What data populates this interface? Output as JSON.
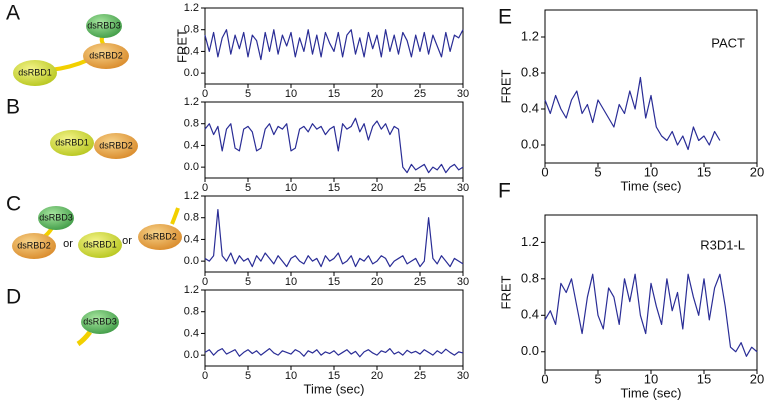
{
  "chart_data": [
    {
      "type": "line",
      "panel": "A",
      "ylabel": "FRET",
      "annotations": [
        "dsRBD1",
        "dsRBD2",
        "dsRBD3"
      ],
      "x": [
        0,
        0.5,
        1,
        1.5,
        2,
        2.5,
        3,
        3.5,
        4,
        4.5,
        5,
        5.5,
        6,
        6.5,
        7,
        7.5,
        8,
        8.5,
        9,
        9.5,
        10,
        10.5,
        11,
        11.5,
        12,
        12.5,
        13,
        13.5,
        14,
        14.5,
        15,
        15.5,
        16,
        16.5,
        17,
        17.5,
        18,
        18.5,
        19,
        19.5,
        20,
        20.5,
        21,
        21.5,
        22,
        22.5,
        23,
        23.5,
        24,
        24.5,
        25,
        25.5,
        26,
        26.5,
        27,
        27.5,
        28,
        28.5,
        29,
        29.5,
        30
      ],
      "series": [
        {
          "color": "#2a2d96",
          "values": [
            0.7,
            0.4,
            0.75,
            0.3,
            0.65,
            0.8,
            0.35,
            0.7,
            0.45,
            0.75,
            0.3,
            0.7,
            0.6,
            0.25,
            0.75,
            0.4,
            0.8,
            0.35,
            0.7,
            0.5,
            0.75,
            0.3,
            0.65,
            0.4,
            0.8,
            0.35,
            0.7,
            0.3,
            0.75,
            0.55,
            0.4,
            0.75,
            0.3,
            0.7,
            0.8,
            0.35,
            0.65,
            0.3,
            0.75,
            0.45,
            0.7,
            0.3,
            0.8,
            0.4,
            0.7,
            0.35,
            0.75,
            0.6,
            0.3,
            0.7,
            0.4,
            0.75,
            0.35,
            0.7,
            0.5,
            0.3,
            0.75,
            0.4,
            0.7,
            0.65,
            0.8
          ]
        }
      ],
      "xlim": [
        0,
        30
      ],
      "ylim": [
        -0.2,
        1.2
      ],
      "xticks": [
        0,
        5,
        10,
        15,
        20,
        25,
        30
      ],
      "yticks": [
        {
          "value": 0,
          "label": "0.0"
        },
        0.4,
        0.8,
        1.2
      ]
    },
    {
      "type": "line",
      "panel": "B",
      "annotations": [
        "dsRBD1",
        "dsRBD2"
      ],
      "x": [
        0,
        0.5,
        1,
        1.5,
        2,
        2.5,
        3,
        3.5,
        4,
        4.5,
        5,
        5.5,
        6,
        6.5,
        7,
        7.5,
        8,
        8.5,
        9,
        9.5,
        10,
        10.5,
        11,
        11.5,
        12,
        12.5,
        13,
        13.5,
        14,
        14.5,
        15,
        15.5,
        16,
        16.5,
        17,
        17.5,
        18,
        18.5,
        19,
        19.5,
        20,
        20.5,
        21,
        21.5,
        22,
        22.5,
        23,
        23.5,
        24,
        24.5,
        25,
        25.5,
        26,
        26.5,
        27,
        27.5,
        28,
        28.5,
        29,
        29.5,
        30
      ],
      "series": [
        {
          "color": "#2a2d96",
          "values": [
            0.7,
            0.8,
            0.6,
            0.75,
            0.3,
            0.7,
            0.8,
            0.35,
            0.3,
            0.7,
            0.75,
            0.65,
            0.3,
            0.35,
            0.7,
            0.8,
            0.6,
            0.75,
            0.7,
            0.8,
            0.3,
            0.35,
            0.7,
            0.75,
            0.65,
            0.8,
            0.7,
            0.75,
            0.6,
            0.7,
            0.75,
            0.3,
            0.8,
            0.7,
            0.75,
            0.9,
            0.65,
            0.8,
            0.5,
            0.75,
            0.85,
            0.7,
            0.8,
            0.6,
            0.75,
            0.7,
            0.0,
            -0.1,
            0.05,
            -0.05,
            0.0,
            0.05,
            -0.1,
            0.0,
            -0.05,
            0.05,
            -0.1,
            0.0,
            0.05,
            -0.05,
            0.0
          ]
        }
      ],
      "xlim": [
        0,
        30
      ],
      "ylim": [
        -0.2,
        1.2
      ],
      "xticks": [
        0,
        5,
        10,
        15,
        20,
        25,
        30
      ],
      "yticks": [
        {
          "value": 0,
          "label": "0.0"
        },
        0.4,
        0.8,
        1.2
      ]
    },
    {
      "type": "line",
      "panel": "C",
      "annotations": [
        "dsRBD3",
        "dsRBD2",
        "or",
        "dsRBD1",
        "or",
        "dsRBD2"
      ],
      "x": [
        0,
        0.5,
        1,
        1.5,
        2,
        2.5,
        3,
        3.5,
        4,
        4.5,
        5,
        5.5,
        6,
        6.5,
        7,
        7.5,
        8,
        8.5,
        9,
        9.5,
        10,
        10.5,
        11,
        11.5,
        12,
        12.5,
        13,
        13.5,
        14,
        14.5,
        15,
        15.5,
        16,
        16.5,
        17,
        17.5,
        18,
        18.5,
        19,
        19.5,
        20,
        20.5,
        21,
        21.5,
        22,
        22.5,
        23,
        23.5,
        24,
        24.5,
        25,
        25.5,
        26,
        26.5,
        27,
        27.5,
        28,
        28.5,
        29,
        29.5,
        30
      ],
      "series": [
        {
          "color": "#2a2d96",
          "values": [
            0.05,
            0.0,
            0.1,
            0.95,
            0.1,
            0.0,
            0.15,
            -0.05,
            0.1,
            0.0,
            0.05,
            -0.1,
            0.1,
            0.0,
            0.15,
            0.05,
            -0.05,
            0.1,
            0.0,
            -0.1,
            0.05,
            0.1,
            0.0,
            -0.05,
            0.1,
            0.0,
            0.05,
            -0.1,
            0.1,
            0.0,
            0.05,
            0.15,
            -0.05,
            0.0,
            0.1,
            -0.1,
            0.05,
            0.0,
            0.1,
            -0.05,
            0.0,
            0.1,
            0.05,
            -0.1,
            0.0,
            0.05,
            0.1,
            -0.05,
            0.0,
            0.05,
            -0.1,
            0.0,
            0.8,
            0.05,
            -0.05,
            0.1,
            0.0,
            -0.1,
            0.05,
            0.0,
            -0.05
          ]
        }
      ],
      "xlim": [
        0,
        30
      ],
      "ylim": [
        -0.2,
        1.2
      ],
      "xticks": [
        0,
        5,
        10,
        15,
        20,
        25,
        30
      ],
      "yticks": [
        {
          "value": 0,
          "label": "0.0"
        },
        0.4,
        0.8,
        1.2
      ]
    },
    {
      "type": "line",
      "panel": "D",
      "xlabel": "Time (sec)",
      "annotations": [
        "dsRBD3"
      ],
      "x": [
        0,
        0.5,
        1,
        1.5,
        2,
        2.5,
        3,
        3.5,
        4,
        4.5,
        5,
        5.5,
        6,
        6.5,
        7,
        7.5,
        8,
        8.5,
        9,
        9.5,
        10,
        10.5,
        11,
        11.5,
        12,
        12.5,
        13,
        13.5,
        14,
        14.5,
        15,
        15.5,
        16,
        16.5,
        17,
        17.5,
        18,
        18.5,
        19,
        19.5,
        20,
        20.5,
        21,
        21.5,
        22,
        22.5,
        23,
        23.5,
        24,
        24.5,
        25,
        25.5,
        26,
        26.5,
        27,
        27.5,
        28,
        28.5,
        29,
        29.5,
        30
      ],
      "series": [
        {
          "color": "#2a2d96",
          "values": [
            0.05,
            0.1,
            0.0,
            0.08,
            0.12,
            0.02,
            0.06,
            0.1,
            -0.02,
            0.05,
            0.1,
            0.03,
            0.08,
            0.0,
            0.06,
            0.12,
            0.04,
            0.0,
            0.08,
            0.05,
            0.02,
            0.1,
            0.06,
            -0.02,
            0.08,
            0.04,
            0.1,
            0.0,
            0.06,
            0.03,
            0.08,
            0.0,
            0.05,
            0.1,
            0.02,
            0.07,
            -0.03,
            0.06,
            0.1,
            0.04,
            0.0,
            0.08,
            0.05,
            0.12,
            0.02,
            0.06,
            0.0,
            0.09,
            0.04,
            0.07,
            0.02,
            0.1,
            0.05,
            0.0,
            0.08,
            0.03,
            0.11,
            0.05,
            0.0,
            0.06,
            0.04
          ]
        }
      ],
      "xlim": [
        0,
        30
      ],
      "ylim": [
        -0.2,
        1.2
      ],
      "xticks": [
        0,
        5,
        10,
        15,
        20,
        25,
        30
      ],
      "yticks": [
        {
          "value": 0,
          "label": "0.0"
        },
        0.4,
        0.8,
        1.2
      ]
    },
    {
      "type": "line",
      "panel": "E",
      "ylabel": "FRET",
      "xlabel": "Time (sec)",
      "annotations": [
        "PACT"
      ],
      "x": [
        0,
        0.5,
        1,
        1.5,
        2,
        2.5,
        3,
        3.5,
        4,
        4.5,
        5,
        5.5,
        6,
        6.5,
        7,
        7.5,
        8,
        8.5,
        9,
        9.5,
        10,
        10.5,
        11,
        11.5,
        12,
        12.5,
        13,
        13.5,
        14,
        14.5,
        15,
        15.5,
        16,
        16.5
      ],
      "series": [
        {
          "color": "#2a2d96",
          "values": [
            0.5,
            0.35,
            0.55,
            0.4,
            0.3,
            0.5,
            0.6,
            0.35,
            0.45,
            0.25,
            0.5,
            0.4,
            0.3,
            0.2,
            0.45,
            0.35,
            0.6,
            0.4,
            0.75,
            0.3,
            0.55,
            0.2,
            0.1,
            0.05,
            0.15,
            0.0,
            0.1,
            -0.05,
            0.2,
            0.05,
            0.1,
            0.0,
            0.15,
            0.05
          ]
        }
      ],
      "xlim": [
        0,
        20
      ],
      "ylim": [
        -0.2,
        1.5
      ],
      "xticks": [
        0,
        5,
        10,
        15,
        20
      ],
      "yticks": [
        {
          "value": 0,
          "label": "0.0"
        },
        0.4,
        0.8,
        1.2
      ]
    },
    {
      "type": "line",
      "panel": "F",
      "ylabel": "FRET",
      "xlabel": "Time (sec)",
      "annotations": [
        "R3D1-L"
      ],
      "x": [
        0,
        0.5,
        1,
        1.5,
        2,
        2.5,
        3,
        3.5,
        4,
        4.5,
        5,
        5.5,
        6,
        6.5,
        7,
        7.5,
        8,
        8.5,
        9,
        9.5,
        10,
        10.5,
        11,
        11.5,
        12,
        12.5,
        13,
        13.5,
        14,
        14.5,
        15,
        15.5,
        16,
        16.5,
        17,
        17.5,
        18,
        18.5,
        19,
        19.5,
        20
      ],
      "series": [
        {
          "color": "#2a2d96",
          "values": [
            0.35,
            0.45,
            0.3,
            0.75,
            0.65,
            0.8,
            0.5,
            0.2,
            0.6,
            0.85,
            0.4,
            0.25,
            0.7,
            0.6,
            0.3,
            0.8,
            0.55,
            0.85,
            0.4,
            0.2,
            0.75,
            0.5,
            0.3,
            0.8,
            0.45,
            0.65,
            0.25,
            0.85,
            0.6,
            0.4,
            0.8,
            0.35,
            0.7,
            0.85,
            0.5,
            0.05,
            0.0,
            0.1,
            -0.05,
            0.05,
            0.0
          ]
        }
      ],
      "xlim": [
        0,
        20
      ],
      "ylim": [
        -0.2,
        1.5
      ],
      "xticks": [
        0,
        5,
        10,
        15,
        20
      ],
      "yticks": [
        {
          "value": 0,
          "label": "0.0"
        },
        0.4,
        0.8,
        1.2
      ]
    }
  ]
}
